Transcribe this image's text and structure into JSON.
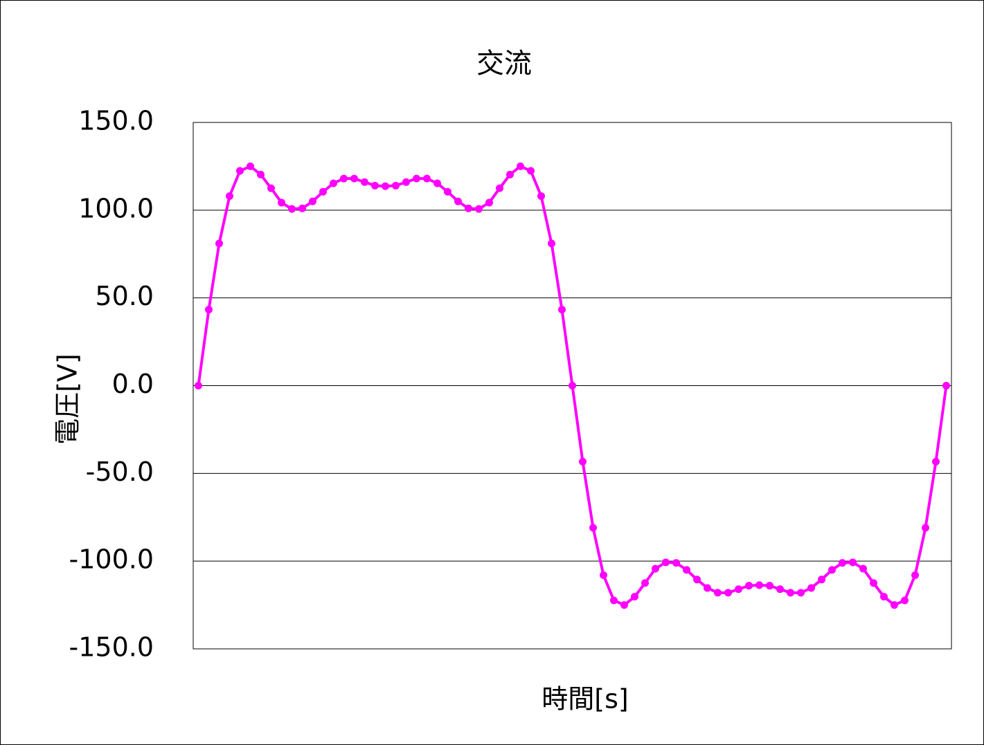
{
  "chart_data": {
    "type": "line",
    "title": "交流",
    "x_label": "時間[s]",
    "y_label": "電圧[V]",
    "color": "#ff00ff",
    "grid": true,
    "values": [
      0,
      43.3,
      81,
      108,
      122.4,
      125,
      120.3,
      112.5,
      104.3,
      100.7,
      101,
      105,
      110.5,
      115.3,
      118,
      118,
      116,
      114,
      113.7,
      114,
      116,
      118,
      118,
      115.3,
      110.5,
      105,
      101,
      100.7,
      104.3,
      112.5,
      120.3,
      125,
      122.4,
      108,
      81,
      43.3,
      0,
      -43.3,
      -81,
      -108,
      -122.4,
      -125,
      -120.3,
      -112.5,
      -104.3,
      -100.7,
      -101,
      -105,
      -110.5,
      -115.3,
      -118,
      -118,
      -116,
      -114,
      -113.7,
      -114,
      -116,
      -118,
      -118,
      -115.3,
      -110.5,
      -105,
      -101,
      -100.7,
      -104.3,
      -112.5,
      -120.3,
      -125,
      -122.4,
      -108,
      -81,
      -43.3,
      0
    ],
    "ylim": [
      -150,
      150
    ],
    "yticks": [
      {
        "value": -150,
        "label": "-150.0"
      },
      {
        "value": -100,
        "label": "-100.0"
      },
      {
        "value": -50,
        "label": "-50.0"
      },
      {
        "value": 0,
        "label": "0.0"
      },
      {
        "value": 50,
        "label": "50.0"
      },
      {
        "value": 100,
        "label": "100.0"
      },
      {
        "value": 150,
        "label": "150.0"
      }
    ]
  }
}
